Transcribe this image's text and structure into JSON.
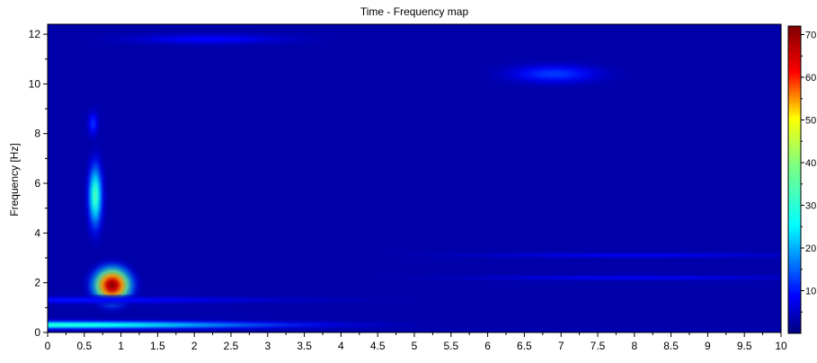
{
  "chart_data": {
    "type": "heatmap",
    "title": "Time - Frequency map",
    "xlabel": "",
    "ylabel": "Frequency [Hz]",
    "xlim": [
      0,
      10
    ],
    "ylim": [
      0,
      12.4
    ],
    "x_ticks": [
      "0",
      "0.5",
      "1",
      "1.5",
      "2",
      "2.5",
      "3",
      "3.5",
      "4",
      "4.5",
      "5",
      "5.5",
      "6",
      "6.5",
      "7",
      "7.5",
      "8",
      "8.5",
      "9",
      "9.5",
      "10"
    ],
    "y_ticks": [
      "0",
      "2",
      "4",
      "6",
      "8",
      "10",
      "12"
    ],
    "colorbar": {
      "min": 0,
      "max": 72,
      "ticks": [
        "10",
        "20",
        "30",
        "40",
        "50",
        "60",
        "70"
      ]
    },
    "background_level": 3,
    "features": [
      {
        "time": 0.88,
        "frequency": 1.9,
        "magnitude": 72
      },
      {
        "time": 0.65,
        "frequency": 5.5,
        "magnitude": 32
      },
      {
        "time": 0.62,
        "frequency": 8.4,
        "magnitude": 12
      },
      {
        "time": 0.0,
        "frequency": 0.3,
        "magnitude": 30
      },
      {
        "time": 0.0,
        "frequency": 1.3,
        "magnitude": 10
      },
      {
        "time": 2.2,
        "frequency": 11.8,
        "magnitude": 9
      },
      {
        "time": 6.9,
        "frequency": 10.4,
        "magnitude": 13
      },
      {
        "time": 8.0,
        "frequency": 3.1,
        "magnitude": 8
      },
      {
        "time": 8.0,
        "frequency": 2.2,
        "magnitude": 8
      }
    ],
    "grid": false,
    "colormap": "jet"
  }
}
